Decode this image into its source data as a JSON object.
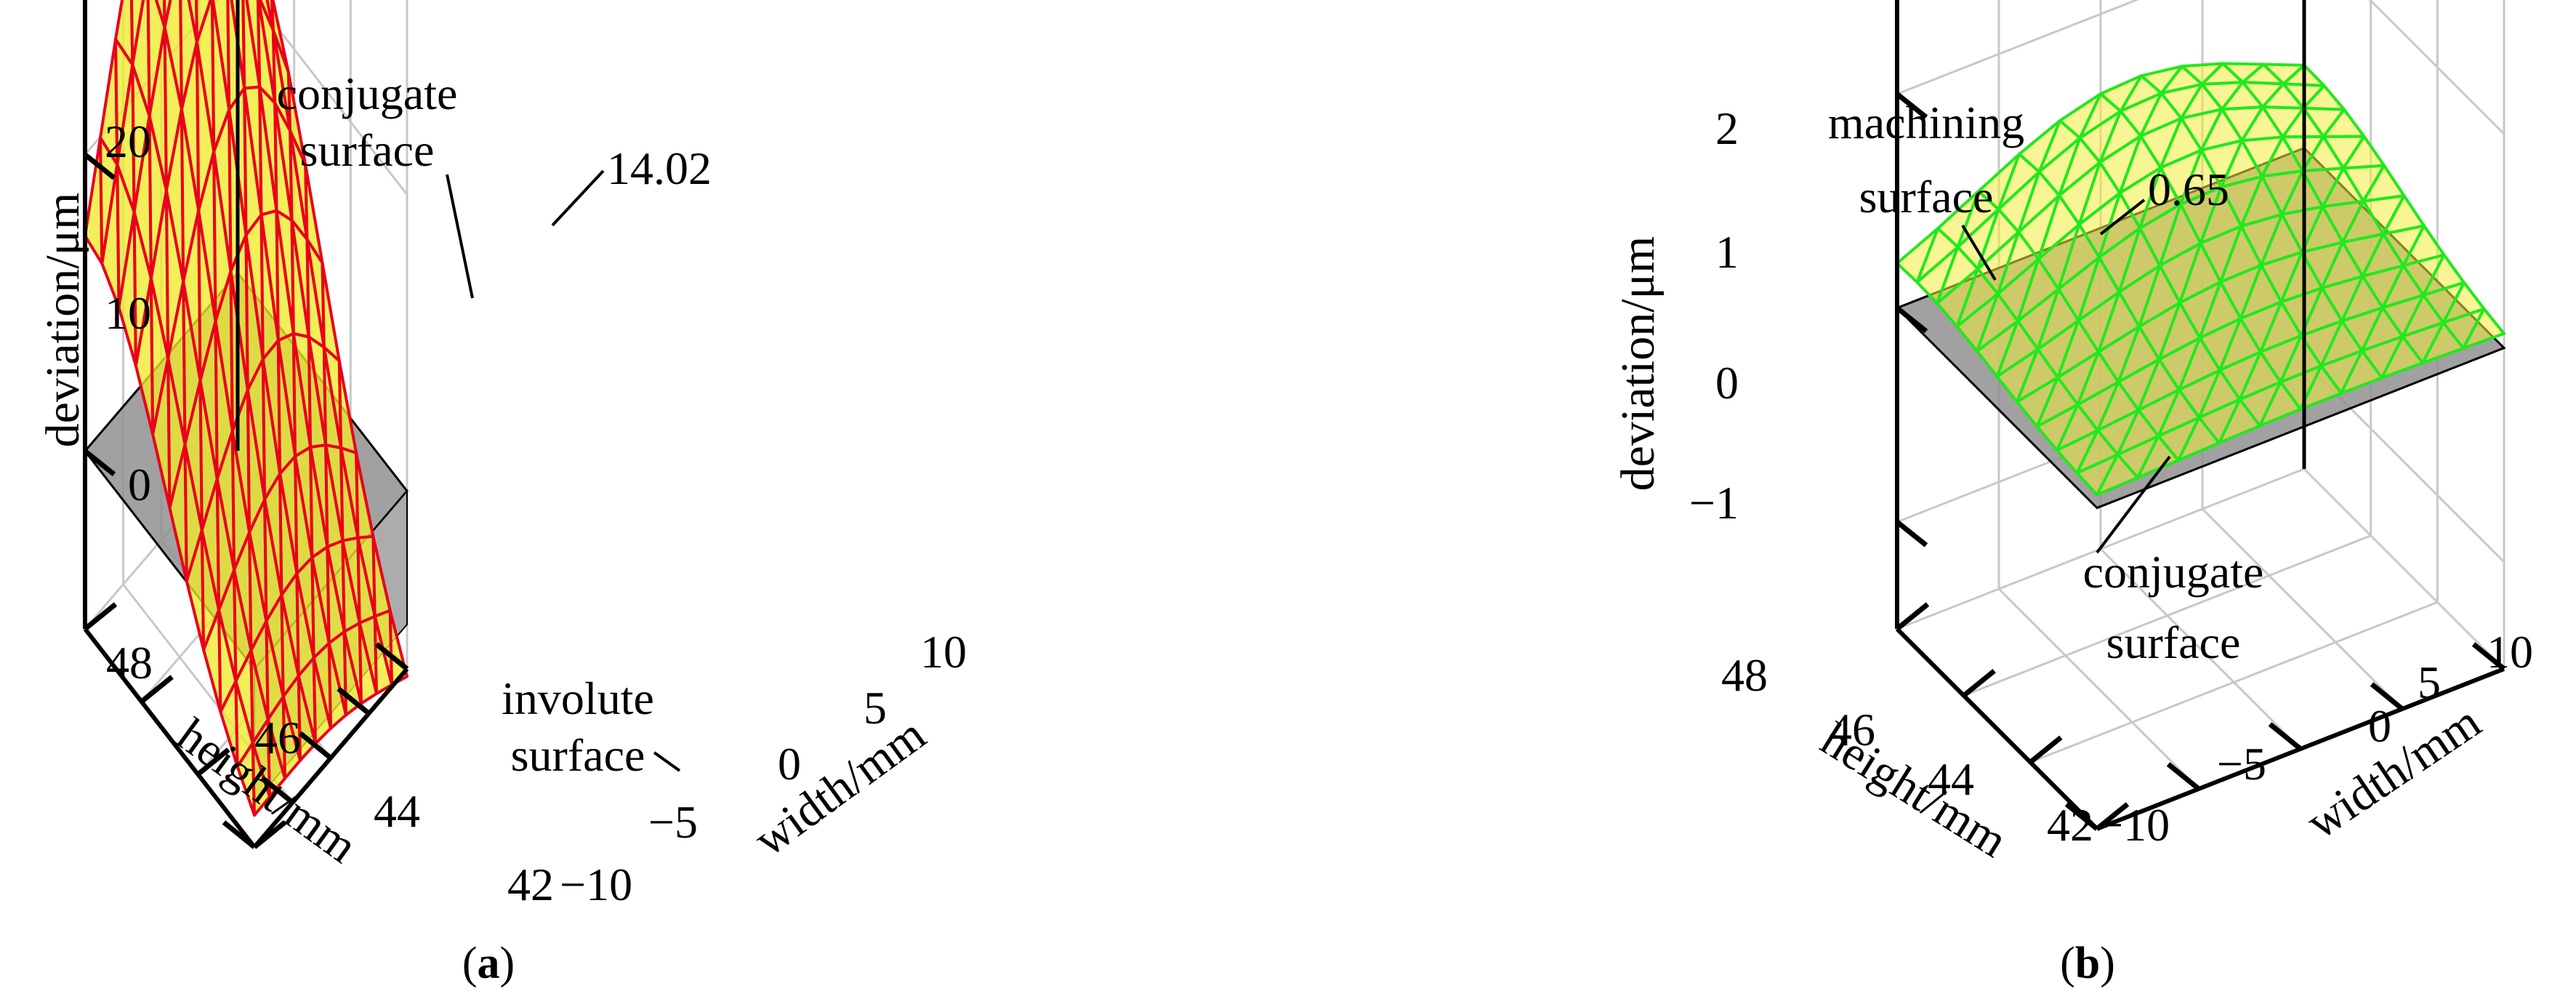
{
  "colors": {
    "panel_a_mesh": "#e8001c",
    "panel_a_fill": "#f0ea2c",
    "panel_b_mesh": "#22e81e",
    "panel_b_fill": "#f3ec3c",
    "reference_fill": "#909090",
    "grid": "#c8c8c8"
  },
  "chart_data": [
    {
      "type": "surface3d",
      "panel_label": "a",
      "x_label": "width/mm",
      "y_label": "height/mm",
      "z_label": "deviation/μm",
      "x_ticks": [
        "−10",
        "−5",
        "0",
        "5",
        "10"
      ],
      "y_ticks": [
        "42",
        "44",
        "46",
        "48"
      ],
      "z_ticks": [
        "0",
        "10",
        "20"
      ],
      "x_range": [
        -10,
        10
      ],
      "y_range": [
        42,
        48
      ],
      "z_range": [
        -6,
        20
      ],
      "peak_label": "14.02",
      "surfaces": [
        {
          "label": "conjugate surface",
          "line1": "conjugate",
          "line2": "surface",
          "peak": 14.02
        },
        {
          "label": "involute surface",
          "line1": "involute",
          "line2": "surface",
          "value": 0
        }
      ]
    },
    {
      "type": "surface3d",
      "panel_label": "b",
      "x_label": "width/mm",
      "y_label": "height/mm",
      "z_label": "deviation/μm",
      "x_ticks": [
        "−10",
        "−5",
        "0",
        "5",
        "10"
      ],
      "y_ticks": [
        "42",
        "44",
        "46",
        "48"
      ],
      "z_ticks": [
        "−1",
        "0",
        "1",
        "2"
      ],
      "x_range": [
        -10,
        10
      ],
      "y_range": [
        42,
        48
      ],
      "z_range": [
        -1.5,
        2
      ],
      "peak_label": "0.65",
      "surfaces": [
        {
          "label": "machining surface",
          "line1": "machining",
          "line2": "surface",
          "peak": 0.65
        },
        {
          "label": "conjugate surface",
          "line1": "conjugate",
          "line2": "surface",
          "value": 0
        }
      ]
    }
  ]
}
